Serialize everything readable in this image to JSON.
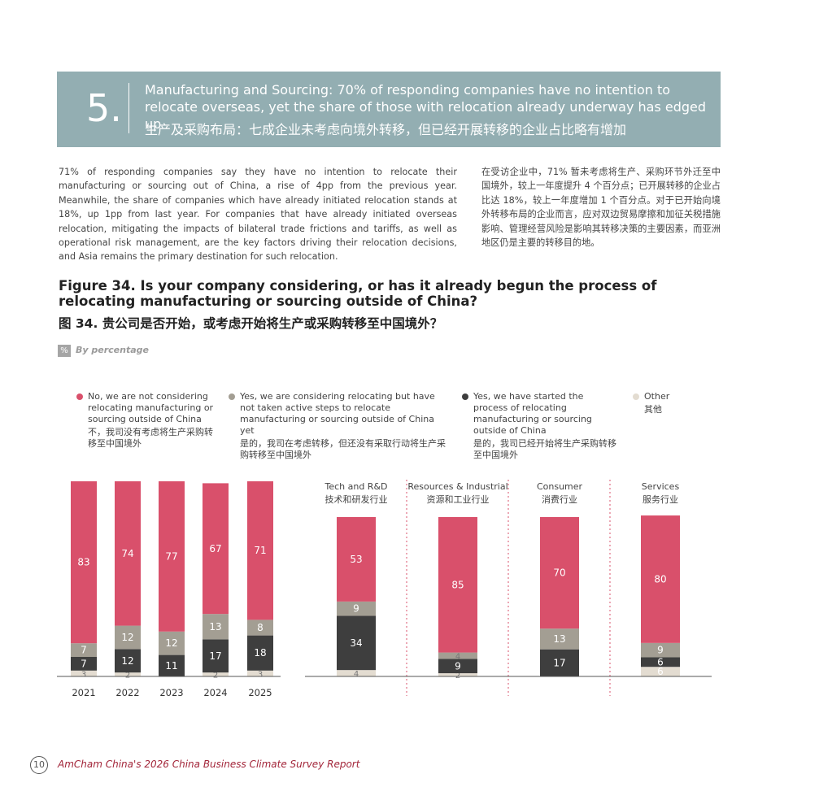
{
  "header": {
    "number": "5.",
    "title": "Manufacturing and Sourcing: 70% of responding companies have no intention to relocate overseas, yet the share of those with relocation already underway has edged up",
    "title_zh": "生产及采购布局：七成企业未考虑向境外转移，但已经开展转移的企业占比略有增加"
  },
  "body": {
    "paragraph": "71% of responding companies say they have no intention to relocate their manufacturing or sourcing out of China, a rise of 4pp from the previous year. Meanwhile, the share of companies which have already initiated relocation stands at 18%, up 1pp from last year. For companies that have already initiated overseas relocation, mitigating the impacts of bilateral trade frictions and tariffs, as well as operational risk management, are the key factors driving their relocation decisions, and Asia remains the primary destination for such relocation.",
    "paragraph_zh": "在受访企业中，71% 暂未考虑将生产、采购环节外迁至中国境外，较上一年度提升 4 个百分点；已开展转移的企业占比达 18%，较上一年度增加 1 个百分点。对于已开始向境外转移布局的企业而言，应对双边贸易摩擦和加征关税措施影响、管理经营风险是影响其转移决策的主要因素，而亚洲地区仍是主要的转移目的地。"
  },
  "figure": {
    "title": "Figure 34. Is your company considering, or has it already begun the process of relocating manufacturing or sourcing outside of China?",
    "title_zh": "图 34. 贵公司是否开始，或考虑开始将生产或采购转移至中国境外？",
    "unit_icon": "%",
    "unit": "By percentage"
  },
  "legend": [
    {
      "name": "No, we are not considering relocating manufacturing or sourcing outside of China",
      "name_zh": "不，我司没有考虑将生产采购转移至中国境外",
      "color": "#d9506b"
    },
    {
      "name": "Yes, we are considering relocating but have not taken active steps to relocate manufacturing or sourcing outside of China yet",
      "name_zh": "是的，我司在考虑转移，但还没有采取行动将生产采购转移至中国境外",
      "color": "#a39e93"
    },
    {
      "name": "Yes, we have started the process of relocating manufacturing or sourcing outside of China",
      "name_zh": "是的，我司已经开始将生产采购转移至中国境外",
      "color": "#3e3e3e"
    },
    {
      "name": "Other",
      "name_zh": "其他",
      "color": "#e3dcd1"
    }
  ],
  "chart_data": [
    {
      "type": "stacked-bar",
      "categories": [
        "2021",
        "2022",
        "2023",
        "2024",
        "2025"
      ],
      "series": [
        {
          "values": [
            83,
            74,
            77,
            67,
            71
          ]
        },
        {
          "values": [
            7,
            12,
            12,
            13,
            8
          ]
        },
        {
          "values": [
            7,
            12,
            11,
            17,
            18
          ]
        },
        {
          "values": [
            3,
            2,
            null,
            2,
            3
          ]
        }
      ]
    },
    {
      "type": "stacked-bar",
      "categories": [
        "Tech and R&D",
        "Resources & Industrial",
        "Consumer",
        "Services"
      ],
      "categories_zh": [
        "技术和研发行业",
        "资源和工业行业",
        "消费行业",
        "服务行业"
      ],
      "series": [
        {
          "values": [
            53,
            85,
            70,
            80
          ]
        },
        {
          "values": [
            9,
            4,
            13,
            9
          ]
        },
        {
          "values": [
            34,
            9,
            17,
            6
          ]
        },
        {
          "values": [
            4,
            2,
            null,
            6
          ]
        }
      ]
    }
  ],
  "footer": {
    "page": "10",
    "text": "AmCham China's 2026 China Business Climate Survey Report"
  }
}
